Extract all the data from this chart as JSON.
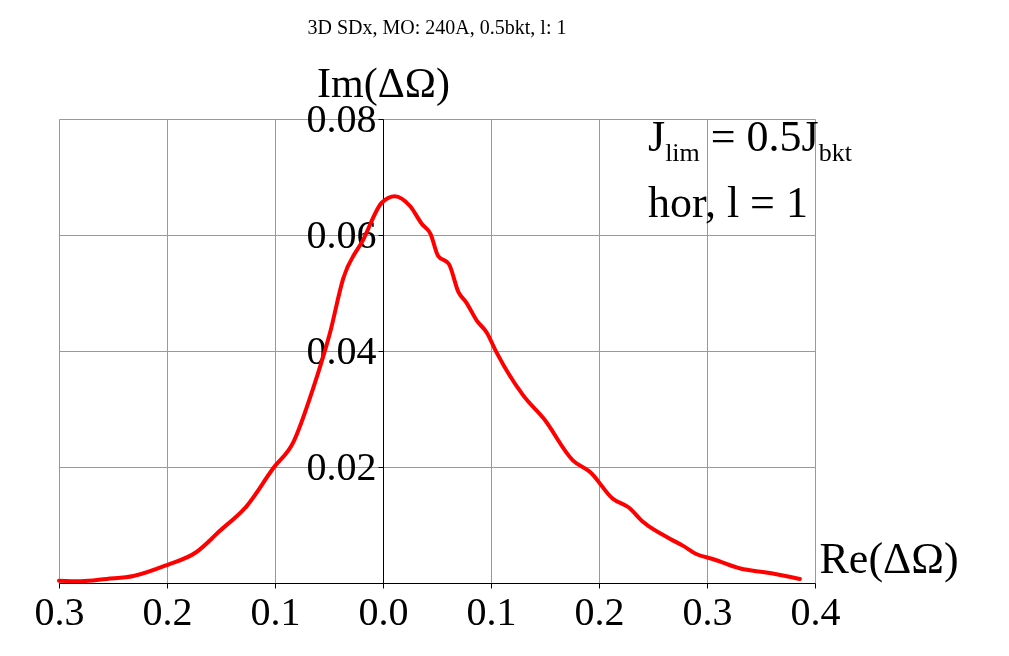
{
  "chart_data": {
    "type": "line",
    "title": "3D SDx, MO:  240A, 0.5bkt, l:  1",
    "xlabel": "Re(ΔΩ)",
    "ylabel": "Im(ΔΩ)",
    "annotations": [
      "J$_{lim}$ = 0.5J$_{bkt}$",
      "hor,   l = 1"
    ],
    "x": [
      -0.3,
      -0.28,
      -0.256,
      -0.231,
      -0.2,
      -0.173,
      -0.151,
      -0.126,
      -0.102,
      -0.083,
      -0.065,
      -0.049,
      -0.037,
      -0.018,
      -0.001,
      0.011,
      0.025,
      0.036,
      0.044,
      0.051,
      0.061,
      0.07,
      0.077,
      0.087,
      0.096,
      0.105,
      0.13,
      0.149,
      0.176,
      0.192,
      0.213,
      0.227,
      0.241,
      0.266,
      0.278,
      0.29,
      0.306,
      0.331,
      0.355,
      0.386
    ],
    "series": [
      {
        "color": "#ff0000",
        "values": [
          0.0004,
          0.0003,
          0.0007,
          0.0012,
          0.0031,
          0.0053,
          0.009,
          0.0133,
          0.0197,
          0.0243,
          0.0334,
          0.0432,
          0.0524,
          0.0593,
          0.0656,
          0.0667,
          0.065,
          0.0619,
          0.0602,
          0.0564,
          0.055,
          0.0501,
          0.0484,
          0.0452,
          0.0432,
          0.0398,
          0.0323,
          0.0283,
          0.0211,
          0.0191,
          0.0145,
          0.0131,
          0.0105,
          0.0076,
          0.0064,
          0.005,
          0.0041,
          0.0025,
          0.0018,
          0.0007
        ]
      }
    ],
    "xlim": [
      -0.3,
      0.4
    ],
    "ylim": [
      0,
      0.08
    ],
    "xticks": [
      {
        "value": -0.3,
        "label": "0.3"
      },
      {
        "value": -0.2,
        "label": "0.2"
      },
      {
        "value": -0.1,
        "label": "0.1"
      },
      {
        "value": 0,
        "label": "0.0"
      },
      {
        "value": 0.1,
        "label": "0.1"
      },
      {
        "value": 0.2,
        "label": "0.2"
      },
      {
        "value": 0.3,
        "label": "0.3"
      },
      {
        "value": 0.4,
        "label": "0.4"
      }
    ],
    "yticks": [
      0.02,
      0.04,
      0.06,
      0.08
    ],
    "grid": true,
    "line_style": "solid",
    "marker": "none"
  }
}
